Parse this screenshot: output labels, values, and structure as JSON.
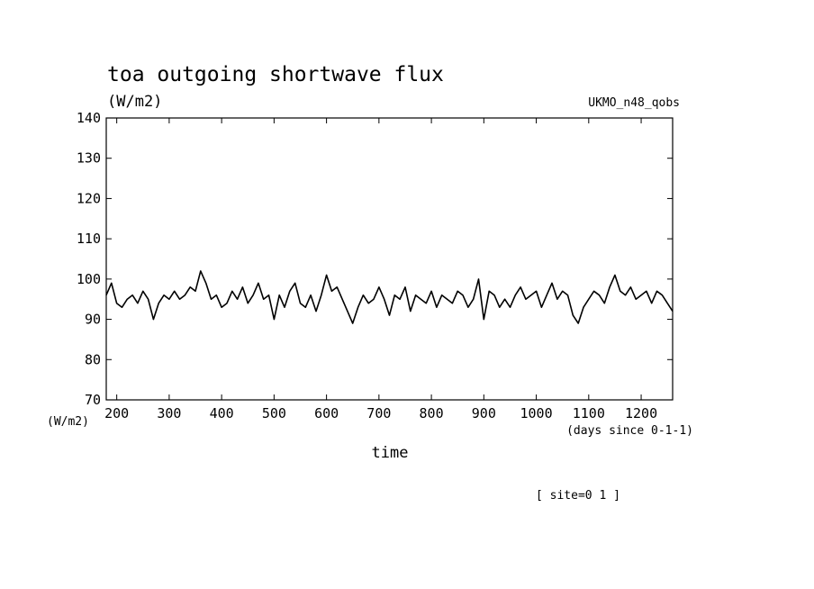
{
  "chart_data": {
    "type": "line",
    "title": "toa outgoing shortwave flux",
    "units_label": "(W/m2)",
    "dataset_label": "UKMO_n48_qobs",
    "ylabel": "(W/m2)",
    "xlabel": "time",
    "x_units_label": "(days since 0-1-1)",
    "footer_note": "[ site=0 1 ]",
    "xlim": [
      180,
      1260
    ],
    "ylim": [
      70,
      140
    ],
    "x_ticks": [
      200,
      300,
      400,
      500,
      600,
      700,
      800,
      900,
      1000,
      1100,
      1200
    ],
    "y_ticks": [
      70,
      80,
      90,
      100,
      110,
      120,
      130,
      140
    ],
    "grid": false,
    "line_color": "#000000",
    "series": [
      {
        "x": [
          180,
          190,
          200,
          210,
          220,
          230,
          240,
          250,
          260,
          270,
          280,
          290,
          300,
          310,
          320,
          330,
          340,
          350,
          360,
          370,
          380,
          390,
          400,
          410,
          420,
          430,
          440,
          450,
          460,
          470,
          480,
          490,
          500,
          510,
          520,
          530,
          540,
          550,
          560,
          570,
          580,
          590,
          600,
          610,
          620,
          630,
          640,
          650,
          660,
          670,
          680,
          690,
          700,
          710,
          720,
          730,
          740,
          750,
          760,
          770,
          780,
          790,
          800,
          810,
          820,
          830,
          840,
          850,
          860,
          870,
          880,
          890,
          900,
          910,
          920,
          930,
          940,
          950,
          960,
          970,
          980,
          990,
          1000,
          1010,
          1020,
          1030,
          1040,
          1050,
          1060,
          1070,
          1080,
          1090,
          1100,
          1110,
          1120,
          1130,
          1140,
          1150,
          1160,
          1170,
          1180,
          1190,
          1200,
          1210,
          1220,
          1230,
          1240,
          1250,
          1260
        ],
        "values": [
          96,
          99,
          94,
          93,
          95,
          96,
          94,
          97,
          95,
          90,
          94,
          96,
          95,
          97,
          95,
          96,
          98,
          97,
          102,
          99,
          95,
          96,
          93,
          94,
          97,
          95,
          98,
          94,
          96,
          99,
          95,
          96,
          90,
          96,
          93,
          97,
          99,
          94,
          93,
          96,
          92,
          96,
          101,
          97,
          98,
          95,
          92,
          89,
          93,
          96,
          94,
          95,
          98,
          95,
          91,
          96,
          95,
          98,
          92,
          96,
          95,
          94,
          97,
          93,
          96,
          95,
          94,
          97,
          96,
          93,
          95,
          100,
          90,
          97,
          96,
          93,
          95,
          93,
          96,
          98,
          95,
          96,
          97,
          93,
          96,
          99,
          95,
          97,
          96,
          91,
          89,
          93,
          95,
          97,
          96,
          94,
          98,
          101,
          97,
          96,
          98,
          95,
          96,
          97,
          94,
          97,
          96,
          94,
          92
        ]
      }
    ]
  }
}
